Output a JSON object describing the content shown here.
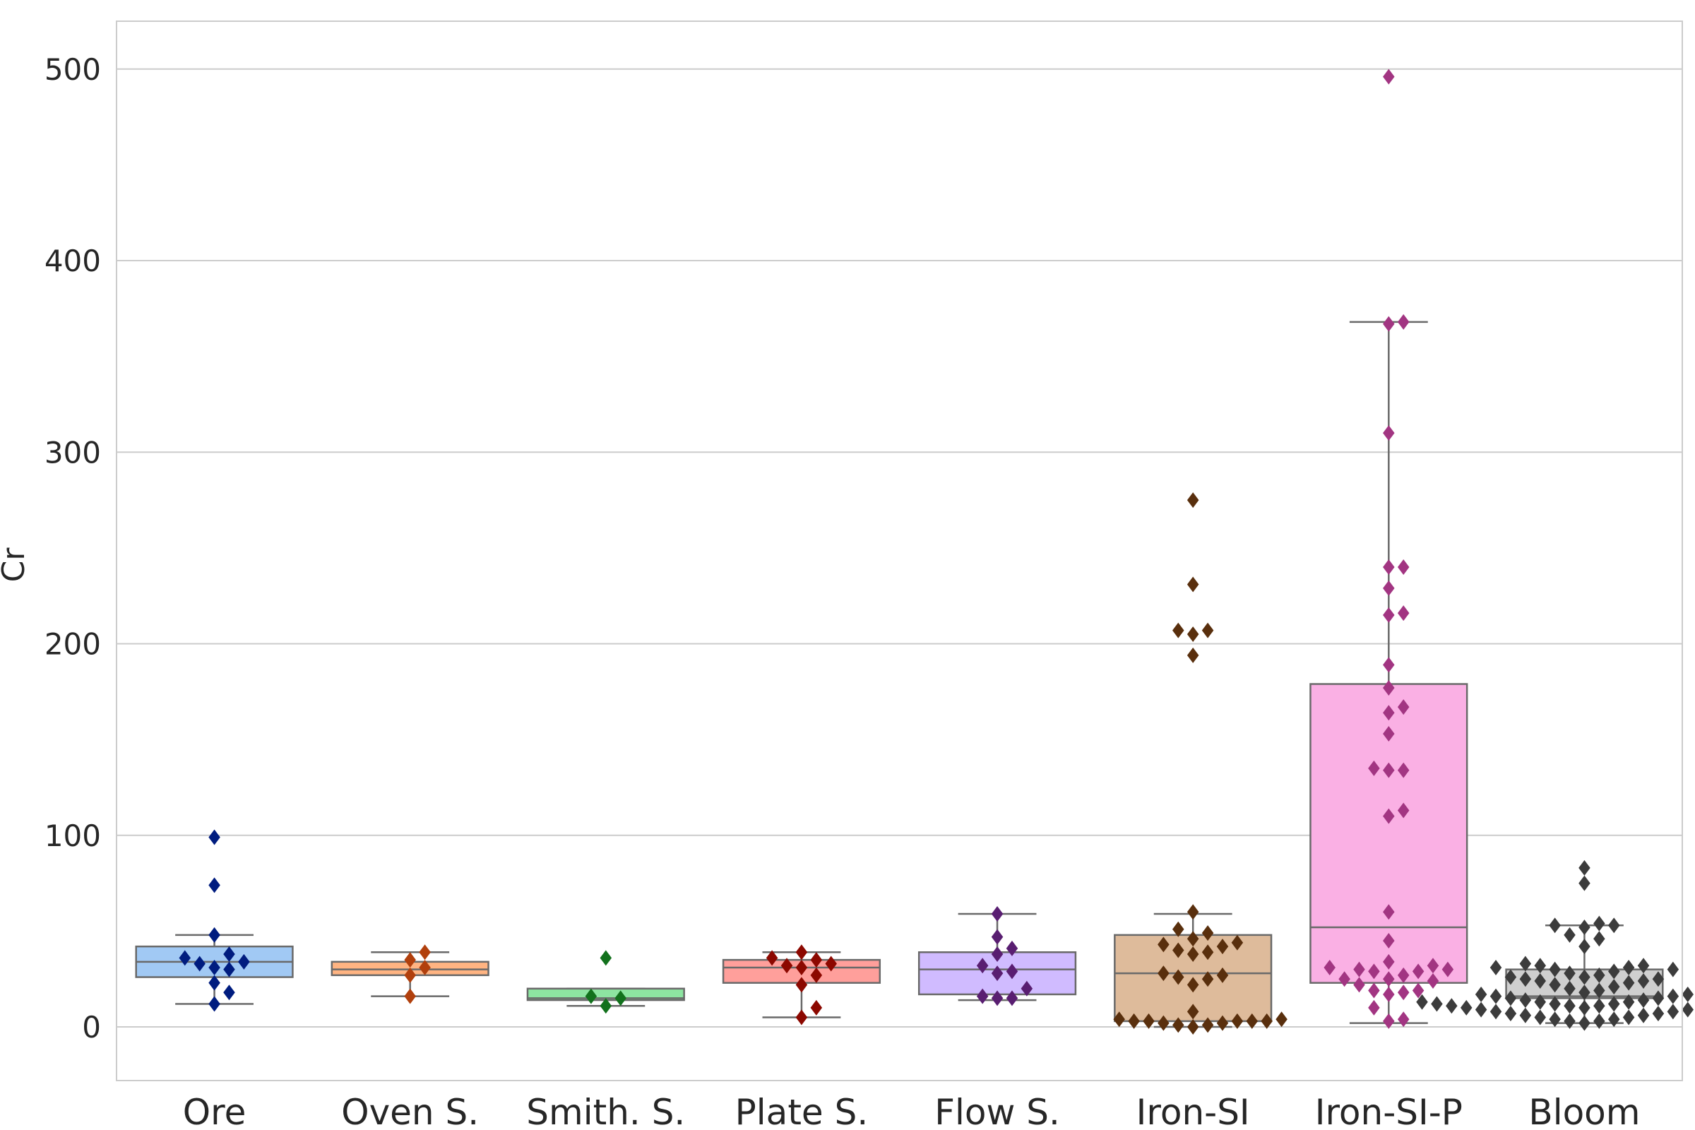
{
  "chart_data": {
    "type": "box",
    "ylabel": "Cr",
    "xlabel": "",
    "ylim": [
      -28,
      525
    ],
    "yticks": [
      0,
      100,
      200,
      300,
      400,
      500
    ],
    "grid": true,
    "categories": [
      "Ore",
      "Oven S.",
      "Smith. S.",
      "Plate S.",
      "Flow S.",
      "Iron-SI",
      "Iron-SI-P",
      "Bloom"
    ],
    "boxes": [
      {
        "name": "Ore",
        "box_color": "#a1c9f4",
        "point_color": "#001c7f",
        "whisker_low": 12,
        "q1": 26,
        "median": 34,
        "q3": 42,
        "whisker_high": 48,
        "points": [
          99,
          74,
          48,
          38,
          36,
          34,
          33,
          31,
          30,
          23,
          18,
          12
        ]
      },
      {
        "name": "Oven S.",
        "box_color": "#ffb482",
        "point_color": "#b1400d",
        "whisker_low": 16,
        "q1": 27,
        "median": 30,
        "q3": 34,
        "whisker_high": 39,
        "points": [
          39,
          35,
          31,
          27,
          16
        ]
      },
      {
        "name": "Smith. S.",
        "box_color": "#8de5a1",
        "point_color": "#12711c",
        "whisker_low": 11,
        "q1": 14,
        "median": 15,
        "q3": 20,
        "whisker_high": 20,
        "points": [
          36,
          16,
          15,
          11
        ]
      },
      {
        "name": "Plate S.",
        "box_color": "#ff9f9b",
        "point_color": "#8c0800",
        "whisker_low": 5,
        "q1": 23,
        "median": 31,
        "q3": 35,
        "whisker_high": 39,
        "points": [
          39,
          36,
          35,
          33,
          32,
          31,
          27,
          22,
          10,
          5
        ]
      },
      {
        "name": "Flow S.",
        "box_color": "#d0bbff",
        "point_color": "#591e71",
        "whisker_low": 14,
        "q1": 17,
        "median": 30,
        "q3": 39,
        "whisker_high": 59,
        "points": [
          59,
          47,
          41,
          38,
          32,
          29,
          28,
          20,
          16,
          15,
          15
        ]
      },
      {
        "name": "Iron-SI",
        "box_color": "#debb9b",
        "point_color": "#592f0d",
        "whisker_low": 0,
        "q1": 3,
        "median": 28,
        "q3": 48,
        "whisker_high": 59,
        "points": [
          275,
          231,
          207,
          207,
          205,
          194,
          60,
          51,
          49,
          46,
          44,
          43,
          42,
          40,
          39,
          38,
          28,
          27,
          26,
          25,
          22,
          8,
          4,
          4,
          3,
          3,
          3,
          3,
          3,
          2,
          2,
          1,
          1,
          0
        ]
      },
      {
        "name": "Iron-SI-P",
        "box_color": "#fab0e4",
        "point_color": "#a23582",
        "whisker_low": 2,
        "q1": 23,
        "median": 52,
        "q3": 179,
        "whisker_high": 368,
        "points": [
          496,
          368,
          367,
          310,
          240,
          240,
          229,
          216,
          215,
          189,
          177,
          167,
          164,
          153,
          135,
          134,
          134,
          113,
          110,
          60,
          45,
          34,
          32,
          31,
          30,
          30,
          29,
          29,
          27,
          25,
          25,
          24,
          22,
          19,
          19,
          18,
          17,
          10,
          4,
          3
        ]
      },
      {
        "name": "Bloom",
        "box_color": "#cfcfcf",
        "point_color": "#3c3c3c",
        "whisker_low": 2,
        "q1": 15,
        "median": 16,
        "q3": 30,
        "whisker_high": 53,
        "points": [
          83,
          75,
          54,
          53,
          53,
          52,
          48,
          46,
          42,
          33,
          32,
          32,
          31,
          31,
          30,
          30,
          29,
          28,
          27,
          26,
          26,
          25,
          25,
          24,
          24,
          23,
          22,
          21,
          20,
          19,
          18,
          17,
          17,
          16,
          16,
          15,
          15,
          14,
          14,
          13,
          13,
          13,
          12,
          12,
          12,
          12,
          11,
          11,
          11,
          11,
          10,
          10,
          10,
          9,
          9,
          9,
          8,
          8,
          7,
          7,
          6,
          6,
          5,
          5,
          4,
          4,
          3,
          3,
          2
        ]
      }
    ]
  }
}
